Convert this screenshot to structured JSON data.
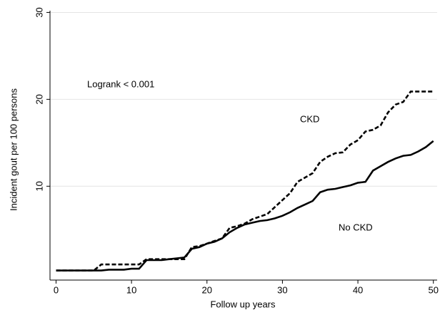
{
  "chart_data": {
    "type": "line",
    "ylabel": "Incident gout per 100 persons",
    "xlabel": "Follow up years",
    "annotations": [
      "Logrank < 0.001",
      "CKD",
      "No CKD"
    ],
    "x": [
      0,
      1,
      2,
      3,
      4,
      5,
      6,
      7,
      8,
      9,
      10,
      11,
      12,
      13,
      14,
      15,
      16,
      17,
      18,
      19,
      20,
      21,
      22,
      23,
      24,
      25,
      26,
      27,
      28,
      29,
      30,
      31,
      32,
      33,
      34,
      35,
      36,
      37,
      38,
      39,
      40,
      41,
      42,
      43,
      44,
      45,
      46,
      47,
      48,
      49,
      50
    ],
    "series": [
      {
        "name": "CKD",
        "color": "#000000",
        "dash": true,
        "values": [
          0.3,
          0.3,
          0.3,
          0.3,
          0.3,
          0.3,
          1.0,
          1.0,
          1.0,
          1.0,
          1.0,
          1.0,
          1.6,
          1.6,
          1.6,
          1.6,
          1.6,
          1.6,
          3.0,
          3.1,
          3.4,
          3.7,
          4.0,
          5.2,
          5.4,
          5.7,
          6.2,
          6.5,
          6.8,
          7.6,
          8.4,
          9.2,
          10.5,
          11.0,
          11.5,
          12.8,
          13.4,
          13.8,
          13.9,
          14.8,
          15.3,
          16.3,
          16.5,
          17.0,
          18.5,
          19.4,
          19.7,
          20.9,
          20.9,
          20.9,
          20.9
        ]
      },
      {
        "name": "No CKD",
        "color": "#000000",
        "dash": false,
        "values": [
          0.3,
          0.3,
          0.3,
          0.3,
          0.3,
          0.3,
          0.3,
          0.4,
          0.4,
          0.4,
          0.5,
          0.5,
          1.5,
          1.5,
          1.5,
          1.6,
          1.7,
          1.8,
          2.8,
          3.0,
          3.4,
          3.6,
          4.0,
          4.7,
          5.2,
          5.6,
          5.8,
          6.0,
          6.1,
          6.3,
          6.6,
          7.0,
          7.5,
          7.9,
          8.3,
          9.3,
          9.6,
          9.7,
          9.9,
          10.1,
          10.4,
          10.5,
          11.8,
          12.3,
          12.8,
          13.2,
          13.5,
          13.6,
          14.0,
          14.5,
          15.2
        ]
      }
    ],
    "xlim": [
      -0.8,
      50.5
    ],
    "ylim": [
      -0.8,
      30.2
    ],
    "xticks": [
      0,
      10,
      20,
      30,
      40,
      50
    ],
    "yticks": [
      10,
      20,
      30
    ],
    "grid": true
  }
}
